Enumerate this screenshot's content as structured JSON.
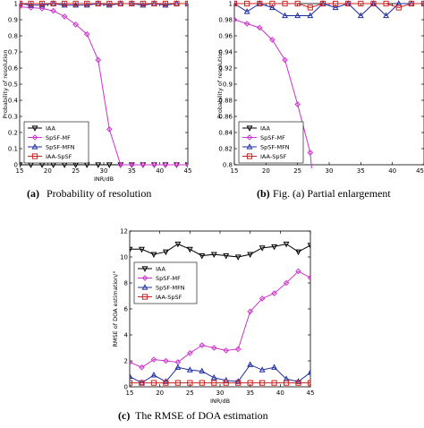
{
  "chart_data": [
    {
      "type": "line",
      "caption_letter": "(a)",
      "caption_text": "Probability of resolution",
      "xlabel": "INR/dB",
      "ylabel": "Probability of resolution",
      "xlim": [
        15,
        45
      ],
      "ylim": [
        0,
        1
      ],
      "xticks": [
        15,
        20,
        25,
        30,
        35,
        40,
        45
      ],
      "yticks": [
        0,
        0.1,
        0.2,
        0.3,
        0.4,
        0.5,
        0.6,
        0.7,
        0.8,
        0.9,
        1
      ],
      "grid": false,
      "legend_position": "bottom-left",
      "x": [
        15,
        17,
        19,
        21,
        23,
        25,
        27,
        29,
        31,
        33,
        35,
        37,
        39,
        41,
        43,
        45
      ],
      "series": [
        {
          "name": "IAA",
          "color": "#000000",
          "marker": "triangle-down",
          "values": [
            0,
            0,
            0,
            0,
            0,
            0,
            0,
            0,
            0,
            0,
            0,
            0,
            0,
            0,
            0,
            0
          ]
        },
        {
          "name": "SpSF-MF",
          "color": "#cc33cc",
          "marker": "diamond",
          "values": [
            0.98,
            0.975,
            0.97,
            0.955,
            0.92,
            0.87,
            0.81,
            0.65,
            0.22,
            0,
            0,
            0,
            0,
            0,
            0,
            0
          ]
        },
        {
          "name": "SpSF-MFN",
          "color": "#1f2fa0",
          "marker": "triangle-up",
          "values": [
            1,
            0.99,
            0.99,
            1,
            0.99,
            0.99,
            0.99,
            1,
            0.99,
            1,
            1,
            0.99,
            1,
            0.99,
            1,
            1
          ]
        },
        {
          "name": "IAA-SpSF",
          "color": "#cc2222",
          "marker": "square",
          "values": [
            1,
            1,
            1,
            1,
            1,
            1,
            1,
            1,
            1,
            1,
            1,
            1,
            1,
            1,
            1,
            1
          ]
        }
      ]
    },
    {
      "type": "line",
      "caption_letter": "(b)",
      "caption_text": "Fig. (a) Partial enlargement",
      "xlabel": "",
      "ylabel": "Probability of resolution",
      "xlim": [
        15,
        45
      ],
      "ylim": [
        0.8,
        1
      ],
      "xticks": [
        15,
        20,
        25,
        30,
        35,
        40,
        45
      ],
      "yticks": [
        0.8,
        0.82,
        0.84,
        0.86,
        0.88,
        0.9,
        0.92,
        0.94,
        0.96,
        0.98,
        1
      ],
      "grid": false,
      "legend_position": "bottom-left",
      "x": [
        15,
        17,
        19,
        21,
        23,
        25,
        27,
        29,
        31,
        33,
        35,
        37,
        39,
        41,
        43,
        45
      ],
      "series": [
        {
          "name": "IAA",
          "color": "#000000",
          "marker": "triangle-down",
          "values": [
            null,
            null,
            null,
            null,
            null,
            null,
            null,
            null,
            null,
            null,
            null,
            null,
            null,
            null,
            null,
            null
          ]
        },
        {
          "name": "SpSF-MF",
          "color": "#cc33cc",
          "marker": "diamond",
          "values": [
            0.98,
            0.975,
            0.97,
            0.955,
            0.93,
            0.875,
            0.815,
            0.65,
            null,
            null,
            null,
            null,
            null,
            null,
            null,
            null
          ]
        },
        {
          "name": "SpSF-MFN",
          "color": "#1f2fa0",
          "marker": "triangle-up",
          "values": [
            1,
            0.99,
            1,
            0.995,
            0.985,
            0.985,
            0.985,
            1,
            0.995,
            1,
            0.985,
            1,
            0.985,
            1,
            1,
            1
          ]
        },
        {
          "name": "IAA-SpSF",
          "color": "#cc2222",
          "marker": "square",
          "values": [
            1,
            1,
            1,
            1,
            1,
            1,
            0.995,
            1,
            1,
            1,
            1,
            1,
            1,
            0.995,
            1,
            1
          ]
        }
      ]
    },
    {
      "type": "line",
      "caption_letter": "(c)",
      "caption_text": "The RMSE of DOA estimation",
      "xlabel": "INR/dB",
      "ylabel": "RMSE of DOA estimation/°",
      "xlim": [
        15,
        45
      ],
      "ylim": [
        0,
        12
      ],
      "xticks": [
        15,
        20,
        25,
        30,
        35,
        40,
        45
      ],
      "yticks": [
        0,
        2,
        4,
        6,
        8,
        10,
        12
      ],
      "grid": false,
      "legend_position": "top-left",
      "x": [
        15,
        17,
        19,
        21,
        23,
        25,
        27,
        29,
        31,
        33,
        35,
        37,
        39,
        41,
        43,
        45
      ],
      "series": [
        {
          "name": "IAA",
          "color": "#000000",
          "marker": "triangle-down",
          "values": [
            10.6,
            10.6,
            10.2,
            10.4,
            11.0,
            10.6,
            10.1,
            10.2,
            10.1,
            10.0,
            10.2,
            10.7,
            10.8,
            11.0,
            10.4,
            10.9
          ]
        },
        {
          "name": "SpSF-MF",
          "color": "#cc33cc",
          "marker": "diamond",
          "values": [
            1.9,
            1.5,
            2.1,
            2.0,
            1.9,
            2.6,
            3.2,
            3.0,
            2.8,
            2.9,
            5.8,
            6.8,
            7.2,
            8.0,
            8.9,
            8.4
          ]
        },
        {
          "name": "SpSF-MFN",
          "color": "#1f2fa0",
          "marker": "triangle-up",
          "values": [
            0.8,
            0.3,
            0.9,
            0.4,
            1.5,
            1.3,
            1.2,
            0.7,
            0.5,
            0.4,
            1.7,
            1.3,
            1.5,
            0.6,
            0.4,
            1.1
          ]
        },
        {
          "name": "IAA-SpSF",
          "color": "#cc2222",
          "marker": "square",
          "values": [
            0.3,
            0.3,
            0.3,
            0.3,
            0.3,
            0.3,
            0.3,
            0.3,
            0.3,
            0.3,
            0.3,
            0.3,
            0.3,
            0.3,
            0.3,
            0.3
          ]
        }
      ]
    }
  ]
}
